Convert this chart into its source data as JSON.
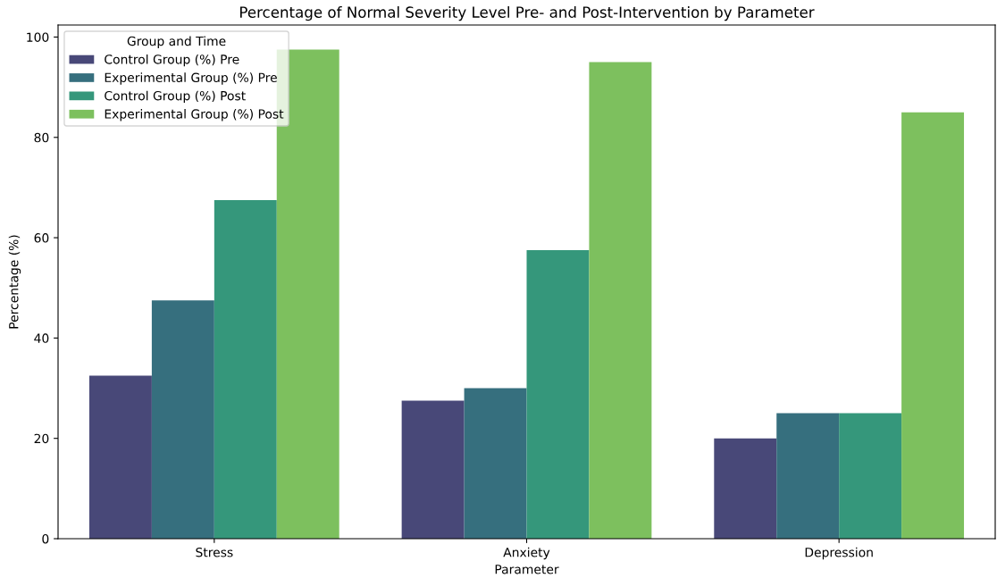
{
  "chart_data": {
    "type": "bar",
    "title": "Percentage of Normal Severity Level Pre- and Post-Intervention by Parameter",
    "xlabel": "Parameter",
    "ylabel": "Percentage (%)",
    "legend_title": "Group and Time",
    "categories": [
      "Stress",
      "Anxiety",
      "Depression"
    ],
    "series": [
      {
        "name": "Control Group (%) Pre",
        "color": "#484878",
        "values": [
          32.5,
          27.5,
          20
        ]
      },
      {
        "name": "Experimental Group (%) Pre",
        "color": "#366f7e",
        "values": [
          47.5,
          30,
          25
        ]
      },
      {
        "name": "Control Group (%) Post",
        "color": "#35977b",
        "values": [
          67.5,
          57.5,
          25
        ]
      },
      {
        "name": "Experimental Group (%) Post",
        "color": "#7dc05e",
        "values": [
          97.5,
          95,
          85
        ]
      }
    ],
    "ylim": [
      0,
      102.4
    ],
    "yticks": [
      0,
      20,
      40,
      60,
      80,
      100
    ],
    "grid": false,
    "legend": "top left"
  }
}
